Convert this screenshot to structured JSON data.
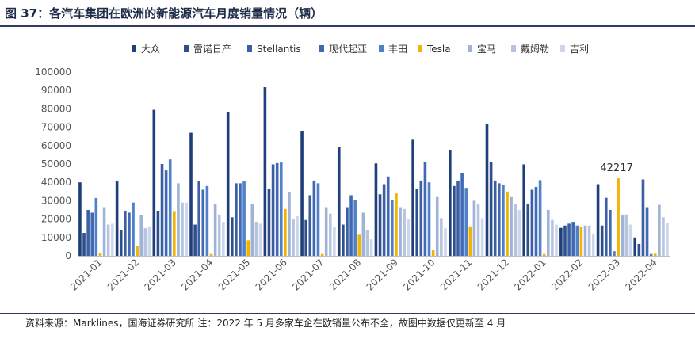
{
  "title": "图 37：各汽车集团在欧洲的新能源汽车月度销量情况（辆）",
  "source": "资料来源：Marklines，国海证券研究所   注：2022 年 5 月多家车企在欧销量公布不全，故图中数据仅更新至 4 月",
  "chart_data": {
    "type": "bar",
    "categories": [
      "2021-01",
      "2021-02",
      "2021-03",
      "2021-04",
      "2021-05",
      "2021-06",
      "2021-07",
      "2021-08",
      "2021-09",
      "2021-10",
      "2021-11",
      "2021-12",
      "2022-01",
      "2022-02",
      "2022-03",
      "2022-04"
    ],
    "ylim": [
      0,
      100000
    ],
    "yticks": [
      "0",
      "10000",
      "20000",
      "30000",
      "40000",
      "50000",
      "60000",
      "70000",
      "80000",
      "90000",
      "100000"
    ],
    "grid": false,
    "legend_position": "top",
    "series": [
      {
        "name": "大众",
        "color": "#1f3f7a",
        "values": [
          40000,
          40500,
          79500,
          67000,
          78000,
          91800,
          67800,
          59300,
          50300,
          63200,
          57500,
          72000,
          49800,
          15200,
          39000,
          10000
        ]
      },
      {
        "name": "雷诺日产",
        "color": "#2e4f8c",
        "values": [
          12500,
          14000,
          24500,
          17000,
          21000,
          36500,
          19500,
          17000,
          33500,
          36500,
          38000,
          51000,
          28000,
          16500,
          16500,
          6500
        ]
      },
      {
        "name": "Stellantis",
        "color": "#3b5fa3",
        "values": [
          25000,
          24500,
          50000,
          40500,
          39500,
          49800,
          33000,
          26500,
          39000,
          41000,
          41000,
          41000,
          36000,
          17500,
          31600,
          41600
        ]
      },
      {
        "name": "现代起亚",
        "color": "#4068b5",
        "values": [
          23500,
          23500,
          46500,
          36000,
          39500,
          50500,
          41000,
          33000,
          43200,
          51000,
          45000,
          39500,
          37500,
          18500,
          25000,
          26500
        ]
      },
      {
        "name": "丰田",
        "color": "#4f80c8",
        "values": [
          31500,
          29000,
          52500,
          38000,
          40500,
          50800,
          39500,
          30500,
          30500,
          40000,
          37000,
          38500,
          41200,
          16500,
          2500,
          1000
        ]
      },
      {
        "name": "Tesla",
        "color": "#f2b400",
        "values": [
          1500,
          5500,
          24000,
          1000,
          8500,
          25500,
          1000,
          11500,
          34000,
          3000,
          16000,
          35000,
          1000,
          16000,
          42217,
          1200
        ]
      },
      {
        "name": "宝马",
        "color": "#9eb3d6",
        "values": [
          26500,
          22000,
          39500,
          28500,
          28000,
          34500,
          26500,
          23500,
          26500,
          32000,
          30000,
          32000,
          25000,
          16500,
          22000,
          27800
        ]
      },
      {
        "name": "戴姆勒",
        "color": "#b6c4e0",
        "values": [
          17000,
          15000,
          29000,
          22500,
          18500,
          20000,
          23000,
          14000,
          25500,
          20500,
          28000,
          28000,
          19500,
          16500,
          22500,
          21000
        ]
      },
      {
        "name": "吉利",
        "color": "#cdd7ec",
        "values": [
          17500,
          16000,
          29000,
          18500,
          17500,
          21500,
          15500,
          9000,
          20000,
          15000,
          20500,
          25000,
          17000,
          12000,
          17000,
          18000
        ]
      }
    ],
    "annotations": [
      {
        "text": "42217",
        "category": "2022-03",
        "series": "Tesla"
      }
    ]
  }
}
